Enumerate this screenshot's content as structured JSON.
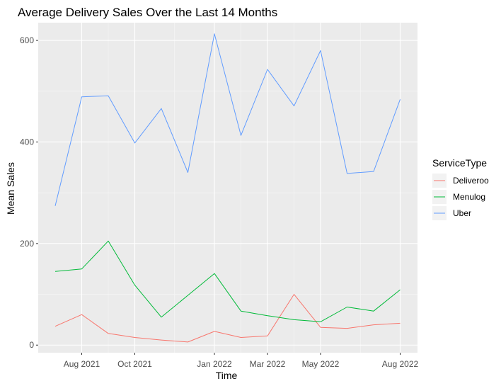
{
  "chart_data": {
    "type": "line",
    "title": "Average Delivery Sales Over the Last 14 Months",
    "xlabel": "Time",
    "ylabel": "Mean Sales",
    "x": [
      "2021-07",
      "2021-08",
      "2021-09",
      "2021-10",
      "2021-11",
      "2021-12",
      "2022-01",
      "2022-02",
      "2022-03",
      "2022-04",
      "2022-05",
      "2022-06",
      "2022-07",
      "2022-08"
    ],
    "x_ticks": [
      {
        "x": "2021-08",
        "label": "Aug 2021"
      },
      {
        "x": "2021-10",
        "label": "Oct 2021"
      },
      {
        "x": "2022-01",
        "label": "Jan 2022"
      },
      {
        "x": "2022-03",
        "label": "Mar 2022"
      },
      {
        "x": "2022-05",
        "label": "May 2022"
      },
      {
        "x": "2022-08",
        "label": "Aug 2022"
      }
    ],
    "y_ticks": [
      0,
      200,
      400,
      600
    ],
    "ylim": [
      -15,
      635
    ],
    "legend": {
      "title": "ServiceType",
      "position": "right"
    },
    "series": [
      {
        "name": "Deliveroo",
        "color": "#F8766D",
        "values": [
          37,
          60,
          23,
          15,
          10,
          6,
          27,
          15,
          18,
          100,
          35,
          33,
          40,
          43
        ]
      },
      {
        "name": "Menulog",
        "color": "#00BA38",
        "values": [
          145,
          150,
          205,
          118,
          55,
          98,
          141,
          67,
          58,
          50,
          46,
          75,
          67,
          109
        ]
      },
      {
        "name": "Uber",
        "color": "#619CFF",
        "values": [
          274,
          489,
          491,
          398,
          466,
          340,
          613,
          413,
          543,
          471,
          580,
          338,
          342,
          484
        ]
      }
    ],
    "grid": true
  }
}
